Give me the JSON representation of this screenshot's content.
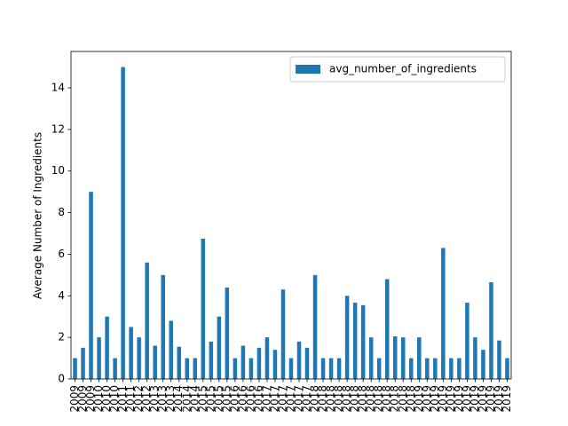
{
  "chart_data": {
    "type": "bar",
    "categories": [
      "2009",
      "2009",
      "2009",
      "2010",
      "2010",
      "2010",
      "2011",
      "2011",
      "2012",
      "2012",
      "2013",
      "2013",
      "2013",
      "2014",
      "2014",
      "2014",
      "2015",
      "2015",
      "2015",
      "2015",
      "2016",
      "2016",
      "2016",
      "2016",
      "2017",
      "2017",
      "2017",
      "2017",
      "2017",
      "2017",
      "2018",
      "2018",
      "2018",
      "2018",
      "2018",
      "2018",
      "2018",
      "2018",
      "2018",
      "2018",
      "2018",
      "2018",
      "2018",
      "2019",
      "2019",
      "2019",
      "2019",
      "2019",
      "2019",
      "2019",
      "2019",
      "2019",
      "2019",
      "2019",
      "2019"
    ],
    "series": [
      {
        "name": "avg_number_of_ingredients",
        "color": "#1f77b4",
        "values": [
          1,
          1.5,
          9,
          2,
          3,
          1,
          15,
          2.5,
          2,
          5.6,
          1.6,
          5,
          2.8,
          1.55,
          1,
          1,
          6.75,
          1.8,
          3,
          4.4,
          1,
          1.6,
          1,
          1.5,
          2,
          1.4,
          4.3,
          1,
          1.8,
          1.5,
          5,
          1,
          1,
          1,
          4,
          3.67,
          3.55,
          2,
          1,
          4.8,
          2.05,
          2,
          1,
          2,
          1,
          1,
          6.3,
          1,
          1,
          3.67,
          2,
          1.4,
          4.65,
          1.85,
          1
        ]
      }
    ],
    "y_label": "Average Number of Ingredients",
    "ylim": [
      0,
      15.75
    ],
    "yticks": [
      0,
      2,
      4,
      6,
      8,
      10,
      12,
      14
    ],
    "legend": "upper right",
    "grid": false
  }
}
